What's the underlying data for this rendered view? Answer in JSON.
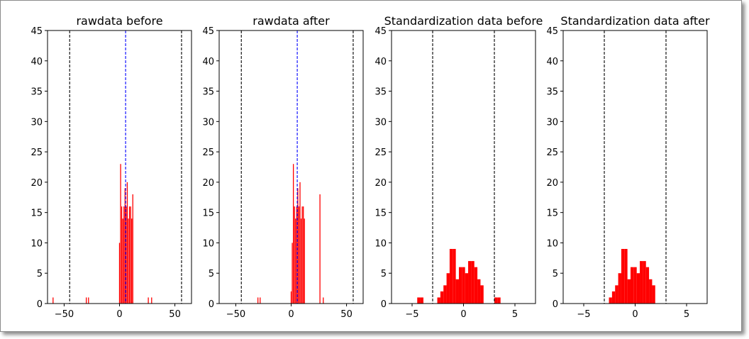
{
  "chart_data": [
    {
      "type": "bar",
      "title": "rawdata before",
      "xlim": [
        -65,
        65
      ],
      "ylim": [
        0,
        45
      ],
      "xticks": [
        -50,
        0,
        50
      ],
      "xtick_labels": [
        "−50",
        "0",
        "50"
      ],
      "yticks": [
        0,
        5,
        10,
        15,
        20,
        25,
        30,
        35,
        40,
        45
      ],
      "ytick_labels": [
        "0",
        "5",
        "10",
        "15",
        "20",
        "25",
        "30",
        "35",
        "40",
        "45"
      ],
      "bar_color": "#ff0000",
      "bar_width": 0.6,
      "x": [
        -60,
        -30,
        -28,
        0,
        1,
        2,
        3,
        4,
        5,
        6,
        7,
        8,
        9,
        10,
        11,
        12,
        26,
        29
      ],
      "values": [
        1,
        1,
        1,
        10,
        23,
        16,
        14,
        16,
        19,
        16,
        20,
        14,
        16,
        16,
        14,
        18,
        1,
        1
      ],
      "vlines": [
        {
          "x": -45,
          "color": "#000000",
          "style": "dashed"
        },
        {
          "x": 5.5,
          "color": "#0000ff",
          "style": "dashed"
        },
        {
          "x": 56,
          "color": "#000000",
          "style": "dashed"
        }
      ],
      "grid": false
    },
    {
      "type": "bar",
      "title": "rawdata after",
      "xlim": [
        -65,
        65
      ],
      "ylim": [
        0,
        45
      ],
      "xticks": [
        -50,
        0,
        50
      ],
      "xtick_labels": [
        "−50",
        "0",
        "50"
      ],
      "yticks": [
        0,
        5,
        10,
        15,
        20,
        25,
        30,
        35,
        40,
        45
      ],
      "ytick_labels": [
        "0",
        "5",
        "10",
        "15",
        "20",
        "25",
        "30",
        "35",
        "40",
        "45"
      ],
      "bar_color": "#ff0000",
      "bar_width": 0.6,
      "x": [
        -30,
        -28,
        0,
        1,
        2,
        3,
        4,
        5,
        6,
        7,
        8,
        9,
        10,
        11,
        12,
        26,
        29
      ],
      "values": [
        1,
        1,
        2,
        10,
        23,
        16,
        14,
        16,
        19,
        16,
        20,
        14,
        16,
        16,
        14,
        18,
        1
      ],
      "vlines": [
        {
          "x": -45,
          "color": "#000000",
          "style": "dashed"
        },
        {
          "x": 5.5,
          "color": "#0000ff",
          "style": "dashed"
        },
        {
          "x": 56,
          "color": "#000000",
          "style": "dashed"
        }
      ],
      "grid": false
    },
    {
      "type": "bar",
      "title": "Standardization data before",
      "xlim": [
        -7,
        7
      ],
      "ylim": [
        0,
        45
      ],
      "xticks": [
        -5,
        0,
        5
      ],
      "xtick_labels": [
        "−5",
        "0",
        "5"
      ],
      "yticks": [
        0,
        5,
        10,
        15,
        20,
        25,
        30,
        35,
        40,
        45
      ],
      "ytick_labels": [
        "0",
        "5",
        "10",
        "15",
        "20",
        "25",
        "30",
        "35",
        "40",
        "45"
      ],
      "bar_color": "#ff0000",
      "bar_width": 0.3,
      "x": [
        -4.35,
        -4.05,
        -2.4,
        -2.1,
        -1.8,
        -1.5,
        -1.2,
        -0.9,
        -0.6,
        -0.3,
        0.0,
        0.3,
        0.6,
        0.9,
        1.2,
        1.5,
        1.8,
        3.15,
        3.45
      ],
      "values": [
        1,
        1,
        1,
        2,
        3,
        5,
        9,
        9,
        4,
        6,
        6,
        5,
        7,
        7,
        6,
        4,
        3,
        1,
        1
      ],
      "vlines": [
        {
          "x": -3,
          "color": "#000000",
          "style": "dashed"
        },
        {
          "x": 3,
          "color": "#000000",
          "style": "dashed"
        }
      ],
      "grid": false
    },
    {
      "type": "bar",
      "title": "Standardization data after",
      "xlim": [
        -7,
        7
      ],
      "ylim": [
        0,
        45
      ],
      "xticks": [
        -5,
        0,
        5
      ],
      "xtick_labels": [
        "−5",
        "0",
        "5"
      ],
      "yticks": [
        0,
        5,
        10,
        15,
        20,
        25,
        30,
        35,
        40,
        45
      ],
      "ytick_labels": [
        "0",
        "5",
        "10",
        "15",
        "20",
        "25",
        "30",
        "35",
        "40",
        "45"
      ],
      "bar_color": "#ff0000",
      "bar_width": 0.3,
      "x": [
        -2.4,
        -2.1,
        -1.8,
        -1.5,
        -1.2,
        -0.9,
        -0.6,
        -0.3,
        0.0,
        0.3,
        0.6,
        0.9,
        1.2,
        1.5,
        1.8
      ],
      "values": [
        1,
        2,
        3,
        5,
        9,
        9,
        4,
        6,
        6,
        5,
        7,
        7,
        6,
        4,
        3
      ],
      "vlines": [
        {
          "x": -3,
          "color": "#000000",
          "style": "dashed"
        },
        {
          "x": 3,
          "color": "#000000",
          "style": "dashed"
        }
      ],
      "grid": false
    }
  ]
}
